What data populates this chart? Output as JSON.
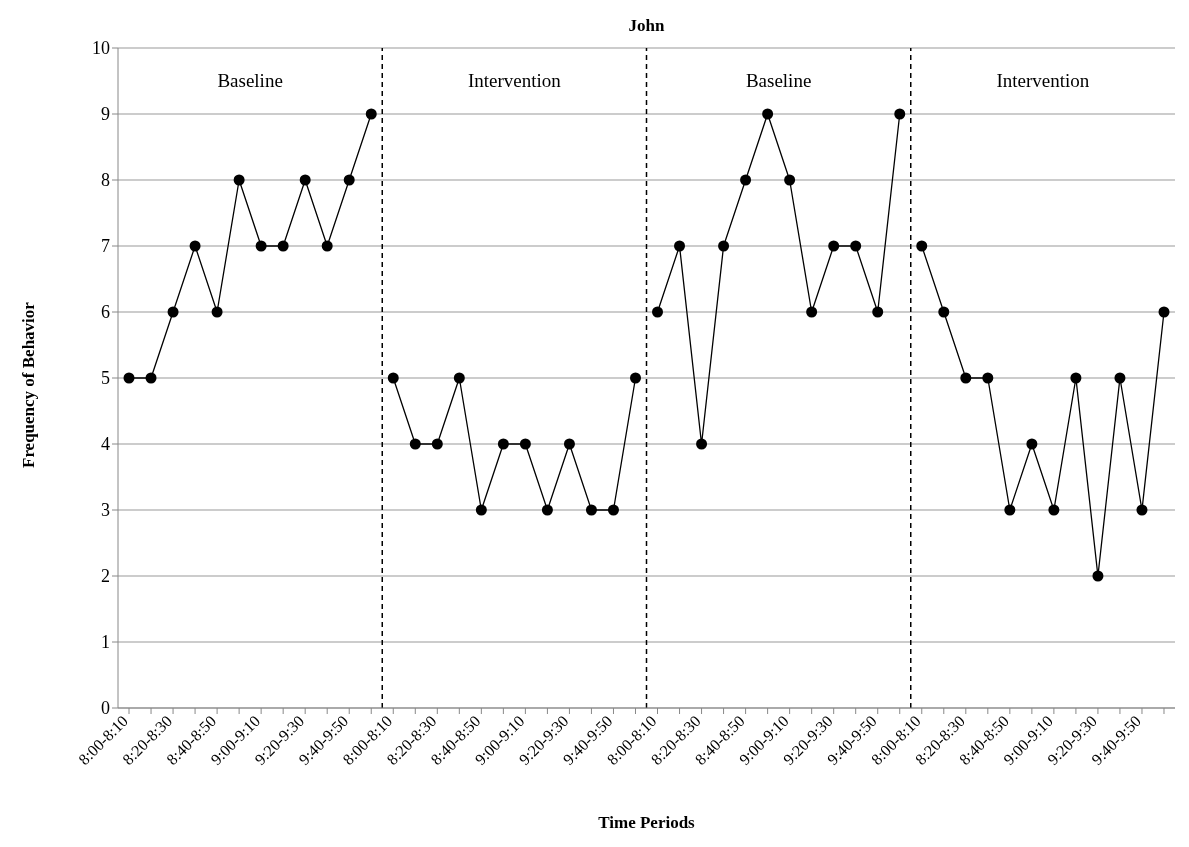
{
  "chart_data": {
    "type": "line",
    "title": "John",
    "xlabel": "Time Periods",
    "ylabel": "Frequency of Behavior",
    "categories": [
      "8:00-8:10",
      null,
      "8:20-8:30",
      null,
      "8:40-8:50",
      null,
      "9:00-9:10",
      null,
      "9:20-9:30",
      null,
      "9:40-9:50",
      null,
      "8:00-8:10",
      null,
      "8:20-8:30",
      null,
      "8:40-8:50",
      null,
      "9:00-9:10",
      null,
      "9:20-9:30",
      null,
      "9:40-9:50",
      null,
      "8:00-8:10",
      null,
      "8:20-8:30",
      null,
      "8:40-8:50",
      null,
      "9:00-9:10",
      null,
      "9:20-9:30",
      null,
      "9:40-9:50",
      null,
      "8:00-8:10",
      null,
      "8:20-8:30",
      null,
      "8:40-8:50",
      null,
      "9:00-9:10",
      null,
      "9:20-9:30",
      null,
      "9:40-9:50",
      null
    ],
    "series": [
      {
        "color": "#000000",
        "values": [
          5,
          5,
          6,
          7,
          6,
          8,
          7,
          7,
          8,
          7,
          8,
          9,
          null,
          null,
          null,
          null,
          null,
          null,
          null,
          null,
          null,
          null,
          null,
          null,
          null,
          null,
          null,
          null,
          null,
          null,
          null,
          null,
          null,
          null,
          null,
          null,
          null,
          null,
          null,
          null,
          null,
          null,
          null,
          null,
          null,
          null,
          null,
          null
        ]
      },
      {
        "color": "#000000",
        "values": [
          null,
          null,
          null,
          null,
          null,
          null,
          null,
          null,
          null,
          null,
          null,
          null,
          5,
          4,
          4,
          5,
          3,
          4,
          4,
          3,
          4,
          3,
          3,
          5,
          null,
          null,
          null,
          null,
          null,
          null,
          null,
          null,
          null,
          null,
          null,
          null,
          null,
          null,
          null,
          null,
          null,
          null,
          null,
          null,
          null,
          null,
          null,
          null
        ]
      },
      {
        "color": "#000000",
        "values": [
          null,
          null,
          null,
          null,
          null,
          null,
          null,
          null,
          null,
          null,
          null,
          null,
          null,
          null,
          null,
          null,
          null,
          null,
          null,
          null,
          null,
          null,
          null,
          null,
          6,
          7,
          4,
          7,
          8,
          9,
          8,
          6,
          7,
          7,
          6,
          9,
          null,
          null,
          null,
          null,
          null,
          null,
          null,
          null,
          null,
          null,
          null,
          null
        ]
      },
      {
        "color": "#000000",
        "values": [
          null,
          null,
          null,
          null,
          null,
          null,
          null,
          null,
          null,
          null,
          null,
          null,
          null,
          null,
          null,
          null,
          null,
          null,
          null,
          null,
          null,
          null,
          null,
          null,
          null,
          null,
          null,
          null,
          null,
          null,
          null,
          null,
          null,
          null,
          null,
          null,
          7,
          6,
          5,
          5,
          3,
          4,
          3,
          5,
          2,
          5,
          3,
          6
        ]
      }
    ],
    "ylim": [
      0,
      10
    ],
    "yticks": [
      0,
      1,
      2,
      3,
      4,
      5,
      6,
      7,
      8,
      9,
      10
    ],
    "grid": "y",
    "marker": "circle",
    "line_style": "solid",
    "annotations": [
      "Baseline",
      "Intervention",
      "Baseline",
      "Intervention"
    ]
  }
}
